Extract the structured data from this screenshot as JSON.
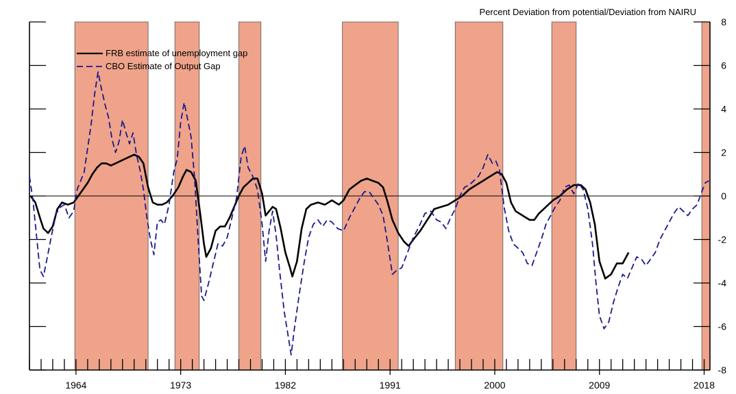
{
  "chart_data": {
    "type": "line",
    "title": "",
    "y_axis_label": "Percent Deviation from potential/Deviation from NAIRU",
    "xlabel": "",
    "x_ticks": [
      1964,
      1973,
      1982,
      1991,
      2000,
      2009,
      2018
    ],
    "xlim": [
      1960.0,
      2018.5
    ],
    "ylim": [
      -8,
      8
    ],
    "y_ticks": [
      8,
      6,
      4,
      2,
      0,
      -2,
      -4,
      -6,
      -8
    ],
    "zero_line": true,
    "legend_position": "top-left",
    "colors": {
      "shading": "#eea38a",
      "frb": "#000000",
      "cbo": "#1a1a8c"
    },
    "recessions": [
      [
        1963.9,
        1970.2
      ],
      [
        1972.5,
        1974.6
      ],
      [
        1978.0,
        1979.9
      ],
      [
        1986.9,
        1991.7
      ],
      [
        1996.6,
        2000.7
      ],
      [
        2004.9,
        2007.0
      ],
      [
        2017.8,
        2018.5
      ]
    ],
    "series": [
      {
        "name": "FRB estimate of unemployment gap",
        "style": "solid",
        "points": [
          [
            1960.1,
            0.0
          ],
          [
            1960.5,
            -0.3
          ],
          [
            1960.9,
            -1.0
          ],
          [
            1961.2,
            -1.5
          ],
          [
            1961.6,
            -1.7
          ],
          [
            1962.0,
            -1.4
          ],
          [
            1962.4,
            -0.6
          ],
          [
            1962.8,
            -0.3
          ],
          [
            1963.3,
            -0.4
          ],
          [
            1963.8,
            -0.3
          ],
          [
            1964.2,
            0.0
          ],
          [
            1964.6,
            0.3
          ],
          [
            1965.0,
            0.6
          ],
          [
            1965.4,
            1.0
          ],
          [
            1965.8,
            1.3
          ],
          [
            1966.2,
            1.5
          ],
          [
            1966.6,
            1.5
          ],
          [
            1967.0,
            1.4
          ],
          [
            1967.4,
            1.5
          ],
          [
            1967.8,
            1.6
          ],
          [
            1968.2,
            1.7
          ],
          [
            1968.6,
            1.8
          ],
          [
            1969.0,
            1.9
          ],
          [
            1969.4,
            1.8
          ],
          [
            1969.8,
            1.5
          ],
          [
            1970.2,
            0.4
          ],
          [
            1970.6,
            -0.3
          ],
          [
            1971.0,
            -0.4
          ],
          [
            1971.4,
            -0.4
          ],
          [
            1971.8,
            -0.3
          ],
          [
            1972.3,
            0.0
          ],
          [
            1972.8,
            0.4
          ],
          [
            1973.2,
            0.9
          ],
          [
            1973.5,
            1.2
          ],
          [
            1973.9,
            1.1
          ],
          [
            1974.3,
            0.7
          ],
          [
            1974.7,
            -0.9
          ],
          [
            1975.0,
            -2.2
          ],
          [
            1975.2,
            -2.8
          ],
          [
            1975.6,
            -2.4
          ],
          [
            1976.0,
            -1.6
          ],
          [
            1976.4,
            -1.4
          ],
          [
            1976.8,
            -1.4
          ],
          [
            1977.2,
            -1.0
          ],
          [
            1977.6,
            -0.5
          ],
          [
            1978.0,
            0.0
          ],
          [
            1978.4,
            0.4
          ],
          [
            1978.8,
            0.6
          ],
          [
            1979.2,
            0.8
          ],
          [
            1979.6,
            0.8
          ],
          [
            1980.0,
            0.1
          ],
          [
            1980.3,
            -0.9
          ],
          [
            1980.6,
            -0.7
          ],
          [
            1980.9,
            -0.5
          ],
          [
            1981.2,
            -0.6
          ],
          [
            1981.6,
            -1.5
          ],
          [
            1982.0,
            -2.6
          ],
          [
            1982.4,
            -3.3
          ],
          [
            1982.6,
            -3.7
          ],
          [
            1983.0,
            -3.0
          ],
          [
            1983.4,
            -1.5
          ],
          [
            1983.8,
            -0.6
          ],
          [
            1984.2,
            -0.4
          ],
          [
            1984.8,
            -0.3
          ],
          [
            1985.4,
            -0.4
          ],
          [
            1986.0,
            -0.2
          ],
          [
            1986.6,
            -0.4
          ],
          [
            1987.0,
            -0.2
          ],
          [
            1987.5,
            0.3
          ],
          [
            1988.0,
            0.5
          ],
          [
            1988.5,
            0.7
          ],
          [
            1989.0,
            0.8
          ],
          [
            1989.5,
            0.7
          ],
          [
            1990.0,
            0.6
          ],
          [
            1990.4,
            0.4
          ],
          [
            1990.8,
            -0.3
          ],
          [
            1991.2,
            -1.1
          ],
          [
            1991.7,
            -1.7
          ],
          [
            1992.2,
            -2.1
          ],
          [
            1992.6,
            -2.3
          ],
          [
            1993.0,
            -2.0
          ],
          [
            1993.6,
            -1.6
          ],
          [
            1994.2,
            -1.1
          ],
          [
            1994.8,
            -0.6
          ],
          [
            1995.4,
            -0.5
          ],
          [
            1996.0,
            -0.4
          ],
          [
            1996.6,
            -0.2
          ],
          [
            1997.2,
            0.0
          ],
          [
            1997.8,
            0.3
          ],
          [
            1998.4,
            0.5
          ],
          [
            1999.0,
            0.7
          ],
          [
            1999.6,
            0.9
          ],
          [
            2000.2,
            1.1
          ],
          [
            2000.6,
            1.0
          ],
          [
            2001.0,
            0.6
          ],
          [
            2001.4,
            -0.3
          ],
          [
            2001.8,
            -0.7
          ],
          [
            2002.4,
            -0.9
          ],
          [
            2003.0,
            -1.1
          ],
          [
            2003.4,
            -1.1
          ],
          [
            2003.8,
            -0.8
          ],
          [
            2004.4,
            -0.5
          ],
          [
            2005.0,
            -0.2
          ],
          [
            2005.6,
            0.0
          ],
          [
            2006.2,
            0.3
          ],
          [
            2006.8,
            0.5
          ],
          [
            2007.4,
            0.5
          ],
          [
            2007.8,
            0.3
          ],
          [
            2008.2,
            -0.3
          ],
          [
            2008.6,
            -1.3
          ],
          [
            2009.0,
            -3.0
          ],
          [
            2009.5,
            -3.8
          ],
          [
            2010.0,
            -3.6
          ],
          [
            2010.5,
            -3.1
          ],
          [
            2011.0,
            -3.1
          ],
          [
            2011.5,
            -2.6
          ]
        ]
      },
      {
        "name": "CBO Estimate of Output Gap",
        "style": "dashed",
        "points": [
          [
            1960.0,
            0.9
          ],
          [
            1960.3,
            -0.2
          ],
          [
            1960.6,
            -1.8
          ],
          [
            1960.9,
            -3.4
          ],
          [
            1961.2,
            -3.7
          ],
          [
            1961.5,
            -2.9
          ],
          [
            1961.9,
            -1.8
          ],
          [
            1962.3,
            -0.8
          ],
          [
            1962.7,
            -0.5
          ],
          [
            1963.0,
            -0.4
          ],
          [
            1963.4,
            -1.0
          ],
          [
            1963.8,
            -0.7
          ],
          [
            1964.1,
            0.3
          ],
          [
            1964.4,
            0.7
          ],
          [
            1964.7,
            1.1
          ],
          [
            1965.0,
            2.2
          ],
          [
            1965.3,
            3.3
          ],
          [
            1965.6,
            4.7
          ],
          [
            1965.9,
            5.7
          ],
          [
            1966.2,
            4.9
          ],
          [
            1966.5,
            4.2
          ],
          [
            1966.8,
            3.6
          ],
          [
            1967.1,
            2.6
          ],
          [
            1967.4,
            2.0
          ],
          [
            1967.7,
            2.5
          ],
          [
            1968.0,
            3.5
          ],
          [
            1968.3,
            2.9
          ],
          [
            1968.6,
            2.4
          ],
          [
            1968.9,
            2.9
          ],
          [
            1969.2,
            1.9
          ],
          [
            1969.5,
            1.2
          ],
          [
            1969.8,
            0.3
          ],
          [
            1970.1,
            -1.0
          ],
          [
            1970.4,
            -2.0
          ],
          [
            1970.7,
            -2.7
          ],
          [
            1971.0,
            -1.2
          ],
          [
            1971.3,
            -1.1
          ],
          [
            1971.6,
            -1.3
          ],
          [
            1972.0,
            -0.4
          ],
          [
            1972.4,
            1.1
          ],
          [
            1972.7,
            1.7
          ],
          [
            1973.0,
            3.4
          ],
          [
            1973.3,
            4.3
          ],
          [
            1973.6,
            3.5
          ],
          [
            1973.9,
            2.7
          ],
          [
            1974.2,
            0.8
          ],
          [
            1974.5,
            -2.0
          ],
          [
            1974.8,
            -4.6
          ],
          [
            1975.0,
            -4.8
          ],
          [
            1975.4,
            -4.0
          ],
          [
            1975.8,
            -3.1
          ],
          [
            1976.2,
            -2.2
          ],
          [
            1976.6,
            -2.3
          ],
          [
            1977.0,
            -1.9
          ],
          [
            1977.4,
            -1.0
          ],
          [
            1977.8,
            -0.1
          ],
          [
            1978.2,
            1.8
          ],
          [
            1978.5,
            2.3
          ],
          [
            1978.8,
            1.3
          ],
          [
            1979.2,
            0.9
          ],
          [
            1979.6,
            0.3
          ],
          [
            1980.0,
            -1.3
          ],
          [
            1980.3,
            -3.0
          ],
          [
            1980.6,
            -1.6
          ],
          [
            1980.9,
            -0.7
          ],
          [
            1981.2,
            -1.8
          ],
          [
            1981.5,
            -3.4
          ],
          [
            1981.9,
            -5.3
          ],
          [
            1982.2,
            -6.3
          ],
          [
            1982.5,
            -7.3
          ],
          [
            1982.8,
            -6.0
          ],
          [
            1983.2,
            -4.5
          ],
          [
            1983.6,
            -3.1
          ],
          [
            1984.0,
            -1.9
          ],
          [
            1984.4,
            -1.3
          ],
          [
            1984.8,
            -1.1
          ],
          [
            1985.2,
            -1.4
          ],
          [
            1985.6,
            -1.1
          ],
          [
            1986.0,
            -1.2
          ],
          [
            1986.5,
            -1.5
          ],
          [
            1987.0,
            -1.6
          ],
          [
            1987.5,
            -1.0
          ],
          [
            1988.0,
            -0.5
          ],
          [
            1988.4,
            -0.1
          ],
          [
            1988.8,
            0.2
          ],
          [
            1989.2,
            0.2
          ],
          [
            1989.6,
            -0.1
          ],
          [
            1990.0,
            -0.4
          ],
          [
            1990.4,
            -0.9
          ],
          [
            1990.8,
            -2.2
          ],
          [
            1991.2,
            -3.6
          ],
          [
            1991.6,
            -3.4
          ],
          [
            1992.0,
            -3.3
          ],
          [
            1992.5,
            -2.6
          ],
          [
            1993.0,
            -1.9
          ],
          [
            1993.5,
            -1.4
          ],
          [
            1994.0,
            -0.8
          ],
          [
            1994.5,
            -0.7
          ],
          [
            1995.0,
            -1.1
          ],
          [
            1995.4,
            -1.2
          ],
          [
            1995.8,
            -1.5
          ],
          [
            1996.2,
            -1.0
          ],
          [
            1996.6,
            -0.6
          ],
          [
            1997.0,
            0.0
          ],
          [
            1997.4,
            0.4
          ],
          [
            1997.8,
            0.5
          ],
          [
            1998.2,
            0.7
          ],
          [
            1998.6,
            0.9
          ],
          [
            1999.0,
            1.3
          ],
          [
            1999.4,
            1.9
          ],
          [
            1999.8,
            1.5
          ],
          [
            2000.1,
            1.6
          ],
          [
            2000.4,
            1.2
          ],
          [
            2000.8,
            -0.5
          ],
          [
            2001.2,
            -1.6
          ],
          [
            2001.6,
            -2.2
          ],
          [
            2002.0,
            -2.4
          ],
          [
            2002.4,
            -2.6
          ],
          [
            2002.8,
            -3.1
          ],
          [
            2003.2,
            -3.2
          ],
          [
            2003.6,
            -2.6
          ],
          [
            2004.0,
            -2.0
          ],
          [
            2004.4,
            -1.3
          ],
          [
            2004.8,
            -0.9
          ],
          [
            2005.2,
            -0.5
          ],
          [
            2005.6,
            -0.2
          ],
          [
            2006.0,
            0.4
          ],
          [
            2006.4,
            0.5
          ],
          [
            2006.8,
            0.1
          ],
          [
            2007.2,
            0.6
          ],
          [
            2007.6,
            0.3
          ],
          [
            2008.0,
            -0.6
          ],
          [
            2008.4,
            -2.2
          ],
          [
            2008.7,
            -4.0
          ],
          [
            2009.0,
            -5.5
          ],
          [
            2009.4,
            -6.1
          ],
          [
            2009.8,
            -5.8
          ],
          [
            2010.2,
            -4.9
          ],
          [
            2010.6,
            -4.2
          ],
          [
            2011.0,
            -3.6
          ],
          [
            2011.4,
            -3.8
          ],
          [
            2011.8,
            -3.3
          ],
          [
            2012.2,
            -2.8
          ],
          [
            2012.6,
            -2.9
          ],
          [
            2013.0,
            -3.2
          ],
          [
            2013.4,
            -2.9
          ],
          [
            2013.8,
            -2.6
          ],
          [
            2014.2,
            -2.0
          ],
          [
            2014.6,
            -1.6
          ],
          [
            2015.0,
            -1.2
          ],
          [
            2015.4,
            -0.8
          ],
          [
            2015.8,
            -0.5
          ],
          [
            2016.2,
            -0.7
          ],
          [
            2016.6,
            -0.9
          ],
          [
            2017.0,
            -0.6
          ],
          [
            2017.4,
            -0.4
          ],
          [
            2017.8,
            0.2
          ],
          [
            2018.1,
            0.6
          ],
          [
            2018.4,
            0.7
          ]
        ]
      }
    ]
  }
}
